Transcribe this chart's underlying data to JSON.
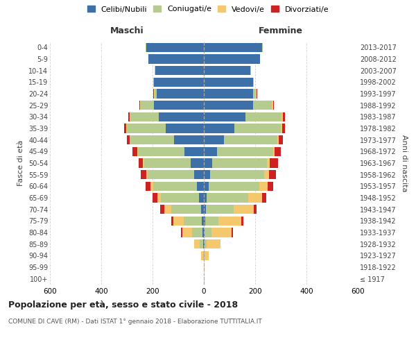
{
  "age_groups": [
    "100+",
    "95-99",
    "90-94",
    "85-89",
    "80-84",
    "75-79",
    "70-74",
    "65-69",
    "60-64",
    "55-59",
    "50-54",
    "45-49",
    "40-44",
    "35-39",
    "30-34",
    "25-29",
    "20-24",
    "15-19",
    "10-14",
    "5-9",
    "0-4"
  ],
  "birth_years": [
    "≤ 1917",
    "1918-1922",
    "1923-1927",
    "1928-1932",
    "1933-1937",
    "1938-1942",
    "1943-1947",
    "1948-1952",
    "1953-1957",
    "1958-1962",
    "1963-1967",
    "1968-1972",
    "1973-1977",
    "1978-1982",
    "1983-1987",
    "1988-1992",
    "1993-1997",
    "1998-2002",
    "2003-2007",
    "2008-2012",
    "2013-2017"
  ],
  "colors": {
    "celibe": "#3d6fa8",
    "coniugato": "#b5cc8e",
    "vedovo": "#f5c86e",
    "divorziato": "#cc2222"
  },
  "maschi": {
    "celibe": [
      0,
      0,
      1,
      3,
      5,
      8,
      12,
      18,
      28,
      38,
      52,
      75,
      115,
      150,
      175,
      195,
      185,
      195,
      190,
      215,
      225
    ],
    "coniugato": [
      0,
      0,
      3,
      12,
      40,
      70,
      115,
      150,
      170,
      182,
      180,
      182,
      172,
      150,
      112,
      52,
      8,
      3,
      2,
      1,
      1
    ],
    "vedovo": [
      0,
      1,
      8,
      22,
      38,
      42,
      28,
      14,
      10,
      5,
      5,
      3,
      3,
      2,
      2,
      2,
      1,
      0,
      0,
      0,
      0
    ],
    "divorziato": [
      0,
      0,
      0,
      2,
      5,
      8,
      15,
      18,
      18,
      22,
      18,
      18,
      10,
      8,
      5,
      3,
      2,
      0,
      0,
      0,
      0
    ]
  },
  "femmine": {
    "nubile": [
      0,
      0,
      1,
      2,
      3,
      5,
      8,
      12,
      18,
      25,
      32,
      52,
      78,
      118,
      162,
      192,
      192,
      192,
      182,
      218,
      228
    ],
    "coniugata": [
      0,
      0,
      3,
      10,
      28,
      52,
      108,
      162,
      198,
      210,
      215,
      218,
      208,
      182,
      142,
      72,
      12,
      3,
      2,
      1,
      1
    ],
    "vedova": [
      0,
      3,
      14,
      52,
      78,
      88,
      78,
      52,
      32,
      18,
      10,
      7,
      5,
      5,
      5,
      5,
      2,
      0,
      0,
      0,
      0
    ],
    "divorziata": [
      0,
      0,
      0,
      2,
      5,
      8,
      12,
      18,
      22,
      28,
      32,
      22,
      16,
      12,
      8,
      5,
      3,
      0,
      0,
      0,
      0
    ]
  },
  "xlim": 600,
  "title_main": "Popolazione per età, sesso e stato civile - 2018",
  "title_sub": "COMUNE DI CAVE (RM) - Dati ISTAT 1° gennaio 2018 - Elaborazione TUTTITALIA.IT",
  "ylabel": "Fasce di età",
  "ylabel_right": "Anni di nascita",
  "legend_labels": [
    "Celibi/Nubili",
    "Coniugati/e",
    "Vedovi/e",
    "Divorziati/e"
  ],
  "maschi_label": "Maschi",
  "femmine_label": "Femmine",
  "background_color": "#ffffff",
  "grid_color": "#cccccc"
}
